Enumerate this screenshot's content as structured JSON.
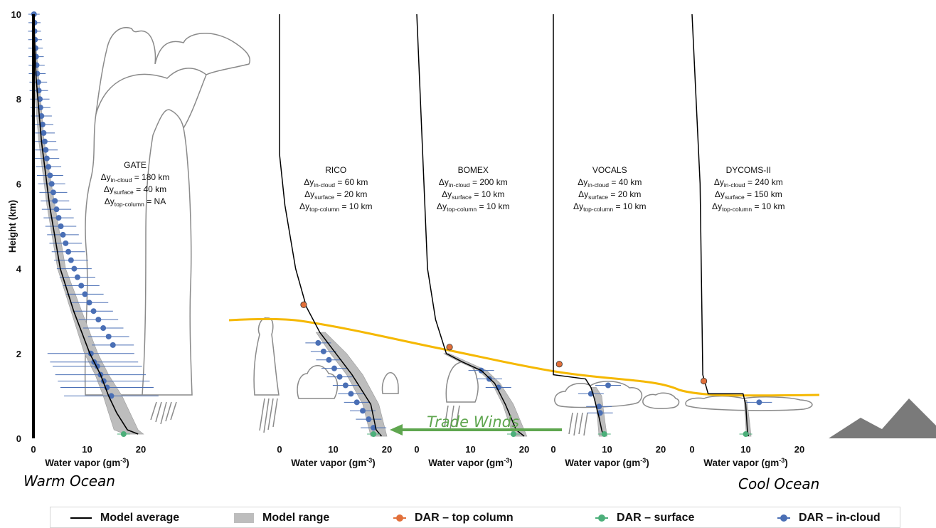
{
  "y_axis_label": "Height (km)",
  "warm_label": "Warm Ocean",
  "cool_label": "Cool Ocean",
  "trade_winds_label": "Trade Winds",
  "colors": {
    "model_avg": "#000000",
    "model_range": "#bdbdbd",
    "top_column": "#e2703a",
    "surface": "#4caf7a",
    "in_cloud": "#4a6fb5",
    "inversion": "#f5b800",
    "trade_winds": "#5fa64f",
    "warm_text": "#e2600e",
    "cool_text": "#1f6fc1"
  },
  "legend": [
    {
      "label": "Model average",
      "symbol": "line"
    },
    {
      "label": "Model range",
      "symbol": "box"
    },
    {
      "label": "DAR – top column",
      "symbol": "top_column"
    },
    {
      "label": "DAR – surface",
      "symbol": "surface"
    },
    {
      "label": "DAR – in-cloud",
      "symbol": "in_cloud"
    }
  ],
  "chart_data": [
    {
      "type": "line",
      "name": "GATE",
      "xlabel": "Water vapor (gm⁻³)",
      "ylabel": "Height (km)",
      "xticks": [
        0,
        10,
        20
      ],
      "yticks": [
        0,
        2,
        4,
        6,
        8,
        10
      ],
      "xlim": [
        0,
        20
      ],
      "ylim": [
        0,
        10
      ],
      "annotations": [
        "GATE",
        "Δyin-cloud = 180 km",
        "Δysurface = 40 km",
        "Δytop-column = NA"
      ],
      "model_average": {
        "x": [
          0,
          0.5,
          1.5,
          3,
          5,
          7.5,
          10.5,
          12.5,
          14,
          15.5,
          17.5,
          19.5
        ],
        "y": [
          10,
          8.5,
          7,
          5.5,
          4,
          3,
          2,
          1.5,
          1,
          0.6,
          0.2,
          0.1
        ]
      },
      "model_range": {
        "lower": [
          0,
          0,
          1,
          2.5,
          4.5,
          7,
          9.5,
          11.5,
          13,
          14,
          15,
          17
        ],
        "upper": [
          0,
          1,
          2,
          4,
          6,
          9,
          12,
          14,
          16.5,
          18,
          19.5,
          20.5
        ],
        "y": [
          10,
          8.5,
          7,
          5.5,
          4,
          3,
          2,
          1.5,
          1,
          0.6,
          0.2,
          0.1
        ]
      },
      "in_cloud": {
        "x": [
          0.1,
          0.2,
          0.2,
          0.3,
          0.4,
          0.5,
          0.6,
          0.7,
          0.9,
          1.0,
          1.2,
          1.3,
          1.5,
          1.7,
          1.9,
          2.1,
          2.3,
          2.5,
          2.8,
          3.1,
          3.4,
          3.7,
          4.0,
          4.3,
          4.7,
          5.1,
          5.5,
          6.0,
          6.5,
          7.0,
          7.6,
          8.2,
          8.9,
          9.6,
          10.4,
          11.2,
          12.1,
          13.0,
          14.0,
          14.8
        ],
        "y": [
          10,
          9.8,
          9.6,
          9.4,
          9.2,
          9.0,
          8.8,
          8.6,
          8.4,
          8.2,
          8.0,
          7.8,
          7.6,
          7.4,
          7.2,
          7.0,
          6.8,
          6.6,
          6.4,
          6.2,
          6.0,
          5.8,
          5.6,
          5.4,
          5.2,
          5.0,
          4.8,
          4.6,
          4.4,
          4.2,
          4.0,
          3.8,
          3.6,
          3.4,
          3.2,
          3.0,
          2.8,
          2.6,
          2.4,
          2.2
        ],
        "x_extra": [
          10.7,
          11.3,
          11.9,
          12.5,
          13.1,
          13.7,
          14.5
        ],
        "y_extra": [
          2.0,
          1.8,
          1.7,
          1.5,
          1.35,
          1.2,
          1.0
        ]
      },
      "surface": {
        "x": [
          16.8
        ],
        "y": [
          0.1
        ]
      },
      "top_column": null
    },
    {
      "type": "line",
      "name": "RICO",
      "xlabel": "Water vapor (gm⁻³)",
      "xticks": [
        0,
        10,
        20
      ],
      "xlim": [
        0,
        20
      ],
      "annotations": [
        "RICO",
        "Δyin-cloud = 60 km",
        "Δysurface = 20 km",
        "Δytop-column = 10 km"
      ],
      "model_average": {
        "x": [
          0,
          0,
          1,
          3,
          5,
          7.5,
          10.5,
          13.5,
          17,
          18,
          19
        ],
        "y": [
          10,
          6.7,
          5.5,
          4,
          3.1,
          2.5,
          2,
          1.5,
          0.8,
          0.2,
          0.05
        ]
      },
      "model_range": {
        "lower": [
          6.8,
          9.5,
          12.5,
          15.5,
          17
        ],
        "upper": [
          8.5,
          12.5,
          15.5,
          18.5,
          20
        ],
        "y": [
          2.5,
          2,
          1.5,
          0.8,
          0.05
        ]
      },
      "in_cloud": {
        "x": [
          7.2,
          8.2,
          9.2,
          10.2,
          11.2,
          12.3,
          13.3,
          14.4,
          15.5,
          16.6,
          17.5
        ],
        "y": [
          2.25,
          2.05,
          1.85,
          1.65,
          1.45,
          1.25,
          1.05,
          0.85,
          0.65,
          0.45,
          0.25
        ]
      },
      "surface": {
        "x": [
          17.5
        ],
        "y": [
          0.1
        ]
      },
      "top_column": {
        "x": [
          4.5
        ],
        "y": [
          3.15
        ]
      }
    },
    {
      "type": "line",
      "name": "BOMEX",
      "xlabel": "Water vapor (gm⁻³)",
      "xticks": [
        0,
        10,
        20
      ],
      "xlim": [
        0,
        20
      ],
      "annotations": [
        "BOMEX",
        "Δyin-cloud = 200 km",
        "Δysurface = 10 km",
        "Δytop-column = 10 km"
      ],
      "model_average": {
        "x": [
          0,
          2,
          3.5,
          5.5,
          8.5,
          12,
          14.5,
          16.5,
          18.5,
          20
        ],
        "y": [
          10,
          4,
          2.8,
          2,
          1.8,
          1.6,
          1.3,
          0.8,
          0.2,
          0.05
        ]
      },
      "model_range": {
        "lower": [
          5,
          8,
          11.5,
          14,
          16,
          18
        ],
        "upper": [
          6,
          9.5,
          13,
          15.5,
          18,
          20.5
        ],
        "y": [
          2,
          1.8,
          1.6,
          1.3,
          0.8,
          0.05
        ]
      },
      "in_cloud": {
        "x": [
          12,
          13.5,
          15.2
        ],
        "y": [
          1.6,
          1.4,
          1.2
        ]
      },
      "surface": {
        "x": [
          18
        ],
        "y": [
          0.1
        ]
      },
      "top_column": {
        "x": [
          6.1
        ],
        "y": [
          2.15
        ]
      }
    },
    {
      "type": "line",
      "name": "VOCALS",
      "xlabel": "Water vapor (gm⁻³)",
      "xticks": [
        0,
        10,
        20
      ],
      "xlim": [
        0,
        20
      ],
      "annotations": [
        "VOCALS",
        "Δyin-cloud = 40 km",
        "Δysurface = 20 km",
        "Δytop-column = 10 km"
      ],
      "model_average": {
        "x": [
          0,
          0,
          0,
          6,
          7,
          7.5,
          8.5,
          9,
          9.3
        ],
        "y": [
          10,
          6,
          1.5,
          1.4,
          1.2,
          1,
          0.5,
          0.2,
          0.05
        ]
      },
      "model_range": {
        "lower": [
          7,
          7.8,
          8.2,
          8.5
        ],
        "upper": [
          8,
          9,
          9.5,
          10
        ],
        "y": [
          1.2,
          1,
          0.5,
          0.05
        ]
      },
      "in_cloud": {
        "x": [
          7,
          8.5,
          10.2,
          8.7
        ],
        "y": [
          1.05,
          0.75,
          1.25,
          0.6
        ]
      },
      "surface": {
        "x": [
          9.5
        ],
        "y": [
          0.1
        ]
      },
      "top_column": {
        "x": [
          1.1
        ],
        "y": [
          1.75
        ]
      }
    },
    {
      "type": "line",
      "name": "DYCOMS-II",
      "xlabel": "Water vapor (gm⁻³)",
      "xticks": [
        0,
        10,
        20
      ],
      "xlim": [
        0,
        20
      ],
      "annotations": [
        "DYCOMS-II",
        "Δyin-cloud = 240 km",
        "Δysurface = 150 km",
        "Δytop-column = 10 km"
      ],
      "model_average": {
        "x": [
          0,
          1.5,
          2,
          3,
          9.5,
          10,
          10.3,
          10.5
        ],
        "y": [
          10,
          6,
          1.5,
          1.05,
          1.05,
          0.8,
          0.2,
          0.05
        ]
      },
      "model_range": {
        "lower": [
          9.7,
          10,
          10.1
        ],
        "upper": [
          10.2,
          10.8,
          11
        ],
        "y": [
          0.9,
          0.3,
          0.05
        ]
      },
      "in_cloud": {
        "x": [
          12.5
        ],
        "y": [
          0.85
        ]
      },
      "surface": {
        "x": [
          10
        ],
        "y": [
          0.1
        ]
      },
      "top_column": {
        "x": [
          2.2
        ],
        "y": [
          1.35
        ]
      }
    }
  ],
  "inversion_line": {
    "comment_free": true
  }
}
